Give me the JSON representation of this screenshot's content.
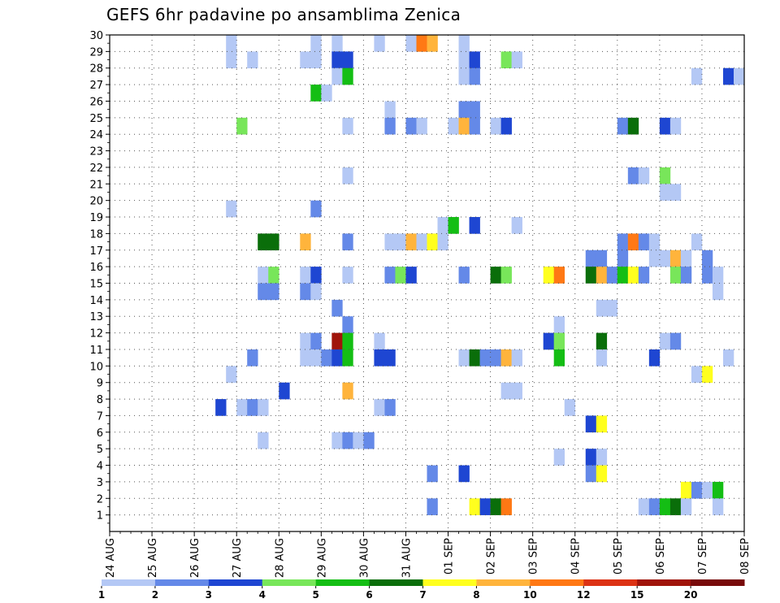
{
  "chart_data": {
    "type": "heatmap",
    "title": "GEFS 6hr padavine po ansamblima Zenica",
    "x_tick_labels": [
      "24 AUG",
      "25 AUG",
      "26 AUG",
      "27 AUG",
      "28 AUG",
      "29 AUG",
      "30 AUG",
      "31 AUG",
      "01 SEP",
      "02 SEP",
      "03 SEP",
      "04 SEP",
      "05 SEP",
      "06 SEP",
      "07 SEP",
      "08 SEP"
    ],
    "x_range_steps": [
      0,
      60
    ],
    "steps_per_day": 4,
    "y_tick_labels": [
      "1",
      "2",
      "3",
      "4",
      "5",
      "6",
      "7",
      "8",
      "9",
      "10",
      "11",
      "12",
      "13",
      "14",
      "15",
      "16",
      "17",
      "18",
      "19",
      "20",
      "21",
      "22",
      "23",
      "24",
      "25",
      "26",
      "27",
      "28",
      "29",
      "30"
    ],
    "y_range": [
      0,
      30
    ],
    "grid": true,
    "legend": {
      "position": "bottom",
      "labels": [
        "1",
        "2",
        "3",
        "4",
        "5",
        "6",
        "7",
        "8",
        "10",
        "12",
        "15",
        "20"
      ],
      "colors": [
        "#b4c8f5",
        "#6489e8",
        "#1e46d2",
        "#78e65a",
        "#14be14",
        "#0a6e0a",
        "#ffff1e",
        "#ffb43c",
        "#ff7814",
        "#dc3214",
        "#a0140a",
        "#780a0a"
      ]
    },
    "colors": {
      "1": "#b4c8f5",
      "2": "#6489e8",
      "3": "#1e46d2",
      "5": "#78e65a",
      "6": "#14be14",
      "7": "#0a6e0a",
      "8": "#ffff1e",
      "10": "#ffb43c",
      "12": "#ff7814",
      "20": "#a0140a"
    },
    "cells": [
      [
        12,
        29,
        1
      ],
      [
        20,
        29,
        1
      ],
      [
        14,
        28,
        1
      ],
      [
        22,
        29,
        1
      ],
      [
        26,
        29,
        1
      ],
      [
        29,
        29,
        1
      ],
      [
        30,
        29,
        12
      ],
      [
        31,
        29,
        10
      ],
      [
        34,
        29,
        1
      ],
      [
        12,
        28,
        1
      ],
      [
        19,
        28,
        1
      ],
      [
        20,
        28,
        1
      ],
      [
        22,
        28,
        3
      ],
      [
        23,
        28,
        3
      ],
      [
        34,
        28,
        1
      ],
      [
        35,
        28,
        3
      ],
      [
        38,
        28,
        5
      ],
      [
        39,
        28,
        1
      ],
      [
        22,
        27,
        1
      ],
      [
        23,
        27,
        6
      ],
      [
        34,
        27,
        1
      ],
      [
        35,
        27,
        2
      ],
      [
        56,
        27,
        1
      ],
      [
        59,
        27,
        3
      ],
      [
        60,
        27,
        1
      ],
      [
        20,
        26,
        6
      ],
      [
        21,
        26,
        1
      ],
      [
        27,
        25,
        1
      ],
      [
        34,
        25,
        2
      ],
      [
        35,
        25,
        2
      ],
      [
        13,
        24,
        5
      ],
      [
        23,
        24,
        1
      ],
      [
        27,
        24,
        2
      ],
      [
        29,
        24,
        2
      ],
      [
        30,
        24,
        1
      ],
      [
        33,
        24,
        1
      ],
      [
        34,
        24,
        10
      ],
      [
        35,
        24,
        2
      ],
      [
        37,
        24,
        1
      ],
      [
        38,
        24,
        3
      ],
      [
        49,
        24,
        2
      ],
      [
        50,
        24,
        7
      ],
      [
        53,
        24,
        3
      ],
      [
        54,
        24,
        1
      ],
      [
        23,
        21,
        1
      ],
      [
        50,
        21,
        2
      ],
      [
        51,
        21,
        1
      ],
      [
        53,
        21,
        5
      ],
      [
        53,
        20,
        1
      ],
      [
        54,
        20,
        1
      ],
      [
        12,
        19,
        1
      ],
      [
        20,
        19,
        2
      ],
      [
        32,
        18,
        1
      ],
      [
        33,
        18,
        6
      ],
      [
        35,
        18,
        3
      ],
      [
        39,
        18,
        1
      ],
      [
        15,
        17,
        7
      ],
      [
        16,
        17,
        7
      ],
      [
        19,
        17,
        10
      ],
      [
        23,
        17,
        2
      ],
      [
        27,
        17,
        1
      ],
      [
        28,
        17,
        1
      ],
      [
        29,
        17,
        10
      ],
      [
        30,
        17,
        1
      ],
      [
        31,
        17,
        8
      ],
      [
        32,
        17,
        1
      ],
      [
        49,
        17,
        2
      ],
      [
        50,
        17,
        12
      ],
      [
        51,
        17,
        2
      ],
      [
        52,
        17,
        1
      ],
      [
        56,
        17,
        1
      ],
      [
        46,
        16,
        2
      ],
      [
        47,
        16,
        2
      ],
      [
        49,
        16,
        2
      ],
      [
        52,
        16,
        1
      ],
      [
        53,
        16,
        1
      ],
      [
        54,
        16,
        10
      ],
      [
        55,
        16,
        1
      ],
      [
        57,
        16,
        2
      ],
      [
        15,
        15,
        1
      ],
      [
        16,
        15,
        5
      ],
      [
        19,
        15,
        1
      ],
      [
        20,
        15,
        3
      ],
      [
        23,
        15,
        1
      ],
      [
        27,
        15,
        2
      ],
      [
        28,
        15,
        5
      ],
      [
        29,
        15,
        3
      ],
      [
        34,
        15,
        2
      ],
      [
        37,
        15,
        7
      ],
      [
        38,
        15,
        5
      ],
      [
        42,
        15,
        8
      ],
      [
        43,
        15,
        12
      ],
      [
        46,
        15,
        7
      ],
      [
        47,
        15,
        10
      ],
      [
        48,
        15,
        2
      ],
      [
        49,
        15,
        6
      ],
      [
        50,
        15,
        8
      ],
      [
        51,
        15,
        2
      ],
      [
        54,
        15,
        5
      ],
      [
        55,
        15,
        2
      ],
      [
        57,
        15,
        2
      ],
      [
        58,
        15,
        1
      ],
      [
        15,
        14,
        2
      ],
      [
        16,
        14,
        2
      ],
      [
        19,
        14,
        2
      ],
      [
        20,
        14,
        1
      ],
      [
        58,
        14,
        1
      ],
      [
        22,
        13,
        2
      ],
      [
        47,
        13,
        1
      ],
      [
        48,
        13,
        1
      ],
      [
        23,
        12,
        2
      ],
      [
        43,
        12,
        1
      ],
      [
        19,
        11,
        1
      ],
      [
        20,
        11,
        2
      ],
      [
        22,
        11,
        20
      ],
      [
        23,
        11,
        6
      ],
      [
        26,
        11,
        1
      ],
      [
        42,
        11,
        3
      ],
      [
        43,
        11,
        5
      ],
      [
        47,
        11,
        7
      ],
      [
        53,
        11,
        1
      ],
      [
        54,
        11,
        2
      ],
      [
        14,
        10,
        2
      ],
      [
        19,
        10,
        1
      ],
      [
        20,
        10,
        1
      ],
      [
        21,
        10,
        2
      ],
      [
        22,
        10,
        3
      ],
      [
        23,
        10,
        6
      ],
      [
        26,
        10,
        3
      ],
      [
        27,
        10,
        3
      ],
      [
        34,
        10,
        1
      ],
      [
        35,
        10,
        7
      ],
      [
        36,
        10,
        2
      ],
      [
        37,
        10,
        2
      ],
      [
        38,
        10,
        10
      ],
      [
        39,
        10,
        1
      ],
      [
        43,
        10,
        6
      ],
      [
        47,
        10,
        1
      ],
      [
        52,
        10,
        3
      ],
      [
        59,
        10,
        1
      ],
      [
        12,
        9,
        1
      ],
      [
        56,
        9,
        1
      ],
      [
        57,
        9,
        8
      ],
      [
        17,
        8,
        3
      ],
      [
        23,
        8,
        10
      ],
      [
        38,
        8,
        1
      ],
      [
        39,
        8,
        1
      ],
      [
        11,
        7,
        3
      ],
      [
        13,
        7,
        1
      ],
      [
        14,
        7,
        2
      ],
      [
        15,
        7,
        1
      ],
      [
        26,
        7,
        1
      ],
      [
        27,
        7,
        2
      ],
      [
        44,
        7,
        1
      ],
      [
        46,
        6,
        3
      ],
      [
        47,
        6,
        8
      ],
      [
        15,
        5,
        1
      ],
      [
        22,
        5,
        1
      ],
      [
        23,
        5,
        2
      ],
      [
        24,
        5,
        1
      ],
      [
        25,
        5,
        2
      ],
      [
        43,
        4,
        1
      ],
      [
        46,
        4,
        3
      ],
      [
        47,
        4,
        1
      ],
      [
        31,
        3,
        2
      ],
      [
        34,
        3,
        3
      ],
      [
        46,
        3,
        2
      ],
      [
        47,
        3,
        8
      ],
      [
        55,
        2,
        8
      ],
      [
        56,
        2,
        2
      ],
      [
        57,
        2,
        1
      ],
      [
        58,
        2,
        6
      ],
      [
        31,
        1,
        2
      ],
      [
        35,
        1,
        8
      ],
      [
        36,
        1,
        3
      ],
      [
        37,
        1,
        7
      ],
      [
        38,
        1,
        12
      ],
      [
        51,
        1,
        1
      ],
      [
        52,
        1,
        2
      ],
      [
        53,
        1,
        6
      ],
      [
        54,
        1,
        7
      ],
      [
        55,
        1,
        1
      ],
      [
        58,
        1,
        1
      ]
    ]
  }
}
